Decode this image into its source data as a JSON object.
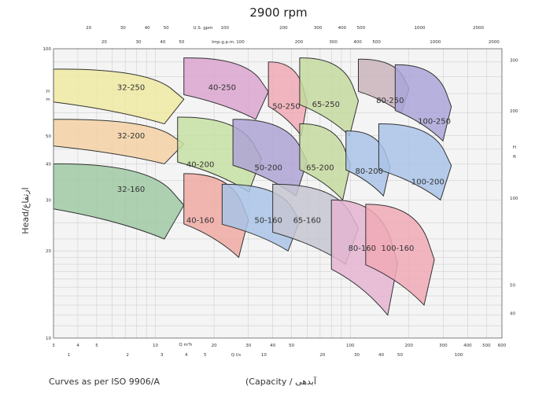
{
  "chart_data": {
    "type": "area",
    "title": "2900 rpm",
    "ylabel": "Head/ارتفاع",
    "xlabel": "(Capacity / آبدهی",
    "footnote": "Curves as per ISO 9906/A",
    "head_m": {
      "label_h": "H",
      "label_m": "m",
      "ticks": [
        10,
        20,
        30,
        40,
        50,
        100
      ],
      "range": [
        10,
        100
      ]
    },
    "head_ft": {
      "label_h": "H",
      "label_ft": "ft",
      "ticks": [
        40,
        50,
        100,
        200,
        300
      ]
    },
    "capacity_m3h": {
      "label": "Q  m³h",
      "ticks": [
        3,
        4,
        5,
        10,
        20,
        30,
        40,
        50,
        100,
        200,
        300,
        400,
        500,
        600
      ],
      "range": [
        3,
        600
      ]
    },
    "capacity_ls": {
      "label": "Q l/s",
      "ticks": [
        1,
        2,
        3,
        4,
        5,
        10,
        20,
        30,
        40,
        50,
        100
      ]
    },
    "us_gpm": {
      "label": "U.S. gpm",
      "ticks": [
        10,
        20,
        30,
        40,
        50,
        100,
        200,
        300,
        400,
        500,
        1000,
        2000
      ]
    },
    "imp_gpm": {
      "label": "Imp.g.p.m.",
      "ticks": [
        10,
        20,
        30,
        40,
        50,
        100,
        200,
        300,
        400,
        500,
        1000,
        2000
      ]
    },
    "series": [
      {
        "name": "32-250",
        "color": "#efe9a1",
        "qmin": 3,
        "qmax": 14,
        "hmin": 55,
        "hmax": 85,
        "label_q": 7.5,
        "label_h": 72
      },
      {
        "name": "40-250",
        "color": "#d9a4cf",
        "qmin": 14,
        "qmax": 38,
        "hmin": 57,
        "hmax": 93,
        "label_q": 22,
        "label_h": 72
      },
      {
        "name": "50-250",
        "color": "#f0a9b6",
        "qmin": 38,
        "qmax": 60,
        "hmin": 50,
        "hmax": 90,
        "label_q": 47,
        "label_h": 62
      },
      {
        "name": "65-250",
        "color": "#c5d9a0",
        "qmin": 55,
        "qmax": 110,
        "hmin": 50,
        "hmax": 93,
        "label_q": 75,
        "label_h": 63
      },
      {
        "name": "80-250",
        "color": "#c9b4bb",
        "qmin": 110,
        "qmax": 200,
        "hmin": 60,
        "hmax": 92,
        "label_q": 160,
        "label_h": 65
      },
      {
        "name": "100-250",
        "color": "#aaa6d8",
        "qmin": 170,
        "qmax": 330,
        "hmin": 48,
        "hmax": 88,
        "label_q": 270,
        "label_h": 55
      },
      {
        "name": "32-200",
        "color": "#f3d1a5",
        "qmin": 3,
        "qmax": 14,
        "hmin": 40,
        "hmax": 57,
        "label_q": 7.5,
        "label_h": 49
      },
      {
        "name": "40-200",
        "color": "#c6e0a3",
        "qmin": 13,
        "qmax": 35,
        "hmin": 32,
        "hmax": 58,
        "label_q": 17,
        "label_h": 39
      },
      {
        "name": "50-200",
        "color": "#aea3d5",
        "qmin": 25,
        "qmax": 60,
        "hmin": 31,
        "hmax": 57,
        "label_q": 38,
        "label_h": 38
      },
      {
        "name": "65-200",
        "color": "#c5d9a0",
        "qmin": 55,
        "qmax": 100,
        "hmin": 30,
        "hmax": 55,
        "label_q": 70,
        "label_h": 38
      },
      {
        "name": "80-200",
        "color": "#a9c3e6",
        "qmin": 95,
        "qmax": 160,
        "hmin": 31,
        "hmax": 52,
        "label_q": 125,
        "label_h": 37
      },
      {
        "name": "100-200",
        "color": "#a9c3e6",
        "qmin": 140,
        "qmax": 330,
        "hmin": 30,
        "hmax": 55,
        "label_q": 250,
        "label_h": 34
      },
      {
        "name": "32-160",
        "color": "#9fc9a3",
        "qmin": 3,
        "qmax": 14,
        "hmin": 22,
        "hmax": 40,
        "label_q": 7.5,
        "label_h": 32
      },
      {
        "name": "40-160",
        "color": "#f0a9a3",
        "qmin": 14,
        "qmax": 30,
        "hmin": 19,
        "hmax": 37,
        "label_q": 17,
        "label_h": 25
      },
      {
        "name": "50-160",
        "color": "#a9c3e6",
        "qmin": 22,
        "qmax": 55,
        "hmin": 20,
        "hmax": 34,
        "label_q": 38,
        "label_h": 25
      },
      {
        "name": "65-160",
        "color": "#c6c6d2",
        "qmin": 40,
        "qmax": 110,
        "hmin": 18,
        "hmax": 34,
        "label_q": 60,
        "label_h": 25
      },
      {
        "name": "80-160",
        "color": "#e4b4d0",
        "qmin": 80,
        "qmax": 175,
        "hmin": 12,
        "hmax": 30,
        "label_q": 115,
        "label_h": 20
      },
      {
        "name": "100-160",
        "color": "#f0a9b6",
        "qmin": 120,
        "qmax": 270,
        "hmin": 13,
        "hmax": 29,
        "label_q": 175,
        "label_h": 20
      }
    ]
  }
}
